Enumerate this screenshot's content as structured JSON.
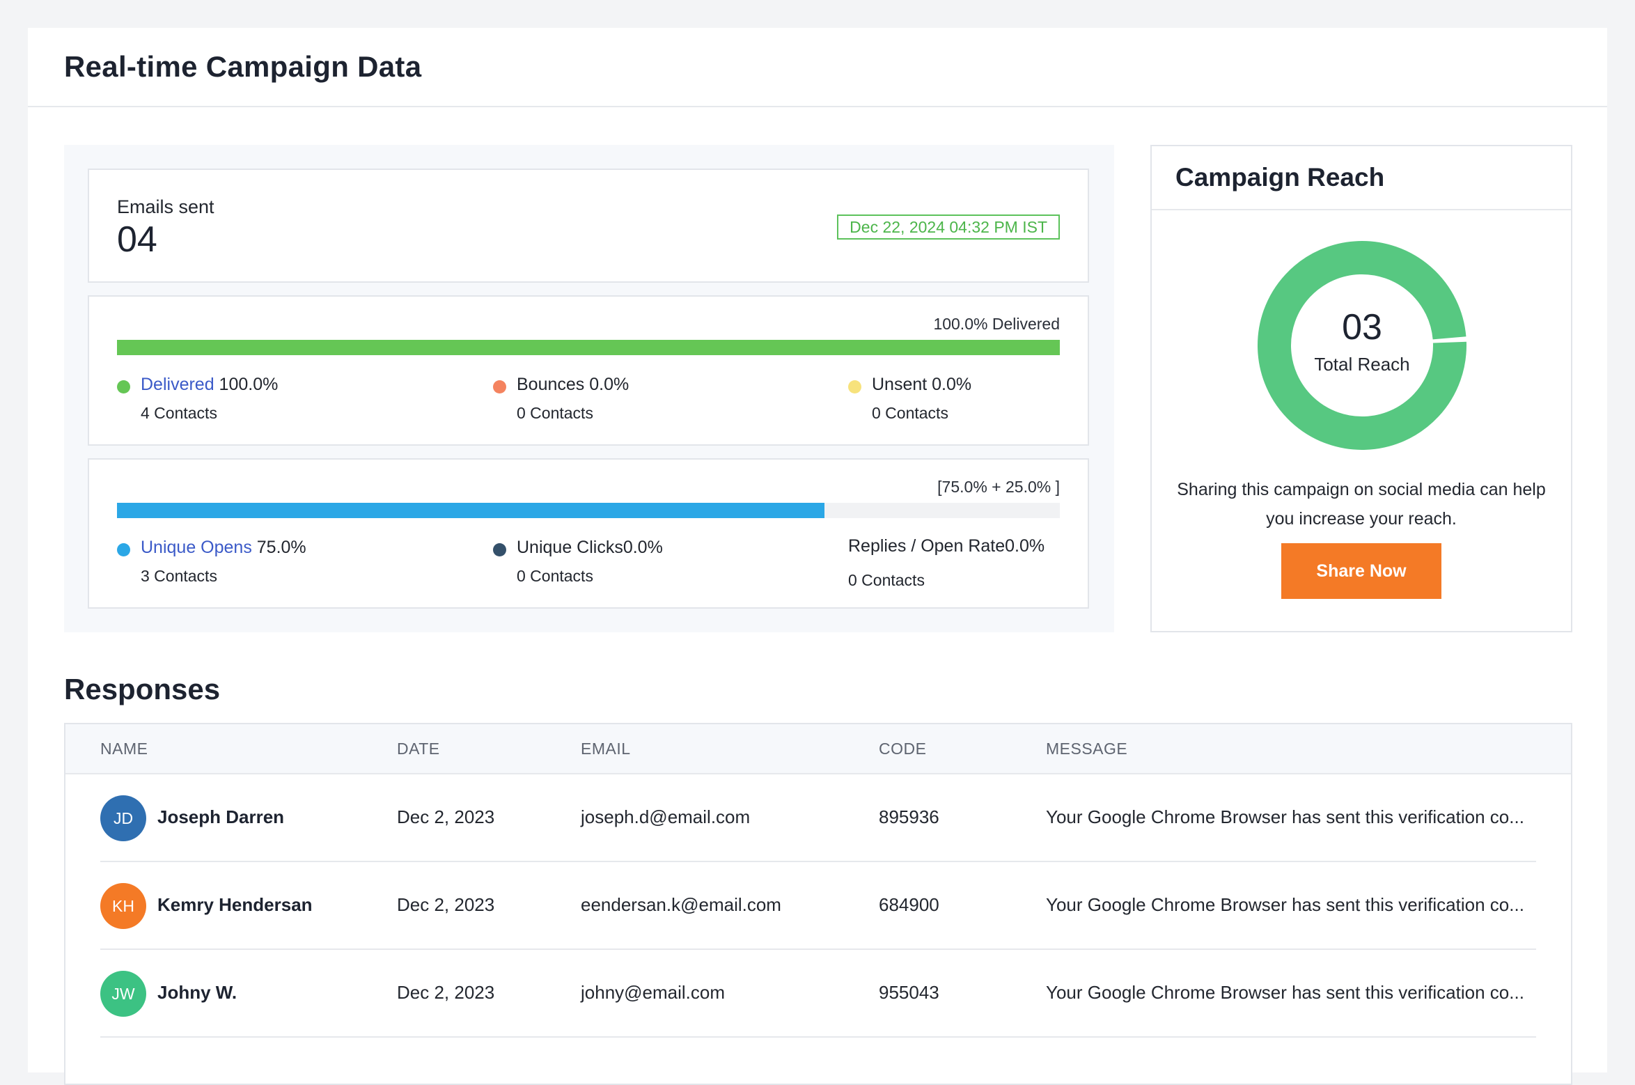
{
  "page": {
    "title": "Real-time Campaign Data"
  },
  "emails_sent": {
    "label": "Emails sent",
    "value": "04",
    "timestamp": "Dec 22, 2024 04:32 PM IST"
  },
  "delivery": {
    "caption": "100.0% Delivered",
    "progress_percent": 100,
    "bar_color": "#65c655",
    "metrics": [
      {
        "link": "Delivered",
        "value": " 100.0%",
        "contacts": "4 Contacts",
        "color": "#65c655"
      },
      {
        "label": "Bounces 0.0%",
        "contacts": "0 Contacts",
        "color": "#f4835f"
      },
      {
        "label": "Unsent 0.0%",
        "contacts": "0 Contacts",
        "color": "#f7e27c"
      }
    ]
  },
  "engagement": {
    "caption": "[75.0% + 25.0% ]",
    "progress_percent": 75,
    "bar_color": "#2ba7e6",
    "metrics": [
      {
        "link": "Unique Opens",
        "value": " 75.0%",
        "contacts": "3 Contacts",
        "color": "#2ba7e6"
      },
      {
        "label": "Unique Clicks0.0%",
        "contacts": "0 Contacts",
        "color": "#34506a"
      },
      {
        "label": "Replies / Open Rate0.0%",
        "contacts": "0 Contacts"
      }
    ]
  },
  "reach": {
    "title": "Campaign Reach",
    "value": "03",
    "label": "Total Reach",
    "ring_color": "#57c881",
    "description": "Sharing this campaign on social media can help you increase your reach.",
    "share_button": "Share Now",
    "button_color": "#f47a26"
  },
  "responses": {
    "title": "Responses",
    "columns": [
      "NAME",
      "DATE",
      "EMAIL",
      "CODE",
      "MESSAGE"
    ],
    "rows": [
      {
        "initials": "JD",
        "name": "Joseph Darren",
        "date": "Dec 2, 2023",
        "email": "joseph.d@email.com",
        "code": "895936",
        "message": "Your Google Chrome Browser has sent this verification co...",
        "avatar_color": "#2f6fb1"
      },
      {
        "initials": "KH",
        "name": "Kemry Hendersan",
        "date": "Dec 2, 2023",
        "email": "eendersan.k@email.com",
        "code": "684900",
        "message": "Your Google Chrome Browser has sent this verification co...",
        "avatar_color": "#f47a26"
      },
      {
        "initials": "JW",
        "name": "Johny W.",
        "date": "Dec 2, 2023",
        "email": "johny@email.com",
        "code": "955043",
        "message": "Your Google Chrome Browser has sent this verification co...",
        "avatar_color": "#3cc283"
      }
    ]
  }
}
